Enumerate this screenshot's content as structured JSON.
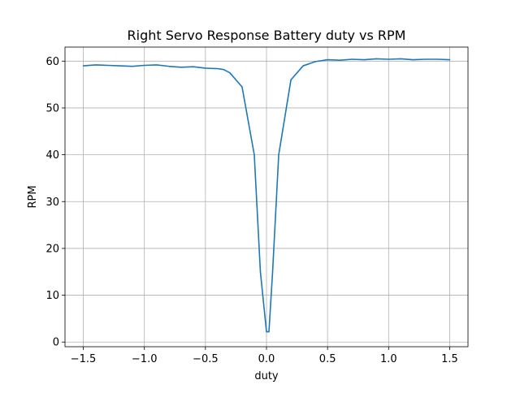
{
  "chart_data": {
    "type": "line",
    "title": "Right Servo Response Battery duty vs RPM",
    "xlabel": "duty",
    "ylabel": "RPM",
    "xlim": [
      -1.65,
      1.65
    ],
    "ylim": [
      -1,
      63
    ],
    "grid": true,
    "xticks": [
      -1.5,
      -1.0,
      -0.5,
      0.0,
      0.5,
      1.0,
      1.5
    ],
    "xtick_labels": [
      "−1.5",
      "−1.0",
      "−0.5",
      "0.0",
      "0.5",
      "1.0",
      "1.5"
    ],
    "yticks": [
      0,
      10,
      20,
      30,
      40,
      50,
      60
    ],
    "ytick_labels": [
      "0",
      "10",
      "20",
      "30",
      "40",
      "50",
      "60"
    ],
    "series": [
      {
        "color": "#1f77b4",
        "x": [
          -1.5,
          -1.4,
          -1.3,
          -1.2,
          -1.1,
          -1.0,
          -0.9,
          -0.8,
          -0.7,
          -0.6,
          -0.5,
          -0.4,
          -0.35,
          -0.3,
          -0.25,
          -0.2,
          -0.1,
          -0.05,
          0.0,
          0.02,
          0.05,
          0.1,
          0.15,
          0.2,
          0.25,
          0.3,
          0.4,
          0.5,
          0.6,
          0.7,
          0.8,
          0.9,
          1.0,
          1.1,
          1.2,
          1.3,
          1.4,
          1.5
        ],
        "y": [
          59.0,
          59.2,
          59.1,
          59.0,
          58.9,
          59.1,
          59.2,
          58.9,
          58.7,
          58.8,
          58.5,
          58.4,
          58.2,
          57.5,
          56.0,
          54.5,
          40.0,
          15.0,
          2.2,
          2.2,
          15.0,
          40.0,
          48.0,
          56.0,
          57.5,
          59.0,
          59.9,
          60.3,
          60.2,
          60.4,
          60.3,
          60.5,
          60.4,
          60.5,
          60.3,
          60.4,
          60.4,
          60.3
        ]
      }
    ]
  }
}
